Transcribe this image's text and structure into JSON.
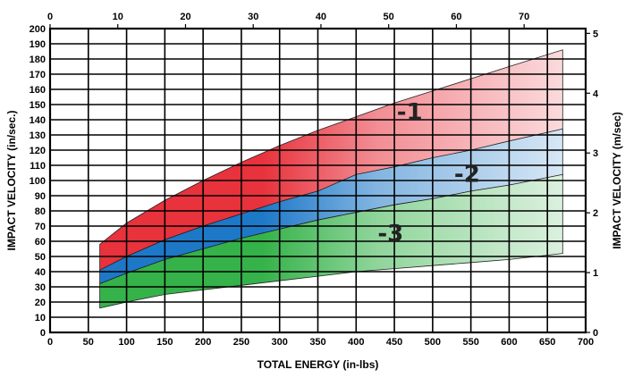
{
  "chart_data": {
    "type": "area",
    "title": "",
    "xlabel": "TOTAL ENERGY (in-lbs)",
    "ylabel": "IMPACT VELOCITY (in/sec.)",
    "y2label": "IMPACT VELOCITY (m/sec)",
    "xlim": [
      0,
      700
    ],
    "ylim": [
      0,
      200
    ],
    "x_top_lim": [
      0,
      79.09
    ],
    "y2lim": [
      0,
      5.08
    ],
    "x_ticks": [
      0,
      50,
      100,
      150,
      200,
      250,
      300,
      350,
      400,
      450,
      500,
      550,
      600,
      650,
      700
    ],
    "y_ticks": [
      0,
      10,
      20,
      30,
      40,
      50,
      60,
      70,
      80,
      90,
      100,
      110,
      120,
      130,
      140,
      150,
      160,
      170,
      180,
      190,
      200
    ],
    "x_top_ticks": [
      0,
      10,
      20,
      30,
      40,
      50,
      60,
      70
    ],
    "y2_ticks": [
      0,
      1,
      2,
      3,
      4,
      5
    ],
    "grid": true,
    "x": [
      65,
      100,
      150,
      200,
      250,
      300,
      350,
      400,
      450,
      500,
      550,
      600,
      670
    ],
    "series": [
      {
        "label": "-1",
        "color": "#e8323c",
        "upper": [
          58,
          72,
          87,
          100,
          112,
          123,
          133,
          142,
          151,
          159,
          167,
          175,
          186
        ],
        "lower": [
          41,
          50,
          61,
          70,
          78,
          86,
          93,
          100,
          106,
          111,
          117,
          122,
          129
        ],
        "label_at": [
          470,
          140
        ]
      },
      {
        "label": "-2",
        "color": "#1e78c8",
        "upper": [
          41,
          50,
          61,
          70,
          78,
          86,
          93,
          104,
          109,
          115,
          120,
          126,
          134
        ],
        "lower": [
          32,
          39,
          48,
          55,
          62,
          68,
          74,
          79,
          84,
          88,
          93,
          97,
          103
        ],
        "label_at": [
          545,
          99
        ]
      },
      {
        "label": "-3",
        "color": "#35b24a",
        "upper": [
          32,
          39,
          48,
          55,
          62,
          68,
          74,
          79,
          84,
          88,
          93,
          97,
          104
        ],
        "lower": [
          16,
          20,
          25,
          28,
          31,
          34,
          37,
          40,
          42,
          44,
          46,
          48,
          52
        ],
        "label_at": [
          445,
          60
        ]
      }
    ]
  }
}
